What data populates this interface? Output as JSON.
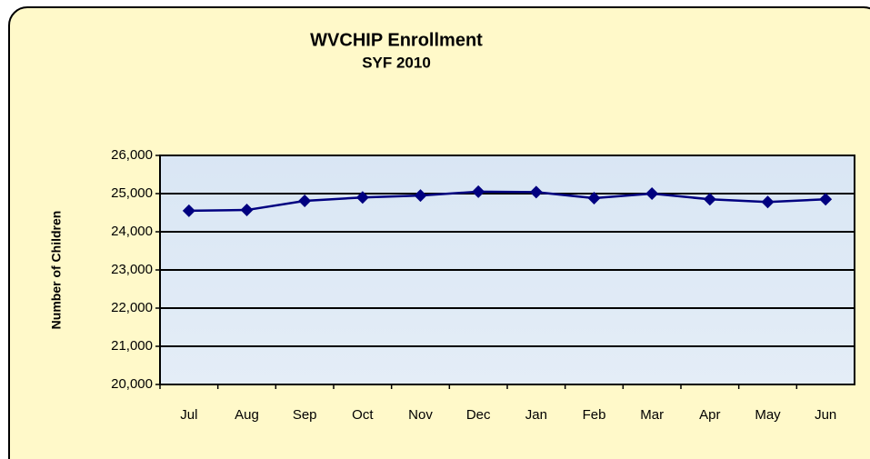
{
  "chart_data": {
    "type": "line",
    "title": "WVCHIP Enrollment",
    "subtitle": "SYF 2010",
    "y_label": "Number of Children",
    "categories": [
      "Jul",
      "Aug",
      "Sep",
      "Oct",
      "Nov",
      "Dec",
      "Jan",
      "Feb",
      "Mar",
      "Apr",
      "May",
      "Jun"
    ],
    "series": [
      {
        "name": "Enrollment",
        "color": "#000080",
        "values": [
          24550,
          24570,
          24810,
          24900,
          24950,
          25050,
          25040,
          24880,
          25000,
          24850,
          24780,
          24850
        ]
      }
    ],
    "ylim": [
      20000,
      26000
    ],
    "yticks": [
      {
        "value": 20000,
        "label": "20,000"
      },
      {
        "value": 21000,
        "label": "21,000"
      },
      {
        "value": 22000,
        "label": "22,000"
      },
      {
        "value": 23000,
        "label": "23,000"
      },
      {
        "value": 24000,
        "label": "24,000"
      },
      {
        "value": 25000,
        "label": "25,000"
      },
      {
        "value": 26000,
        "label": "26,000"
      }
    ],
    "grid": true
  }
}
